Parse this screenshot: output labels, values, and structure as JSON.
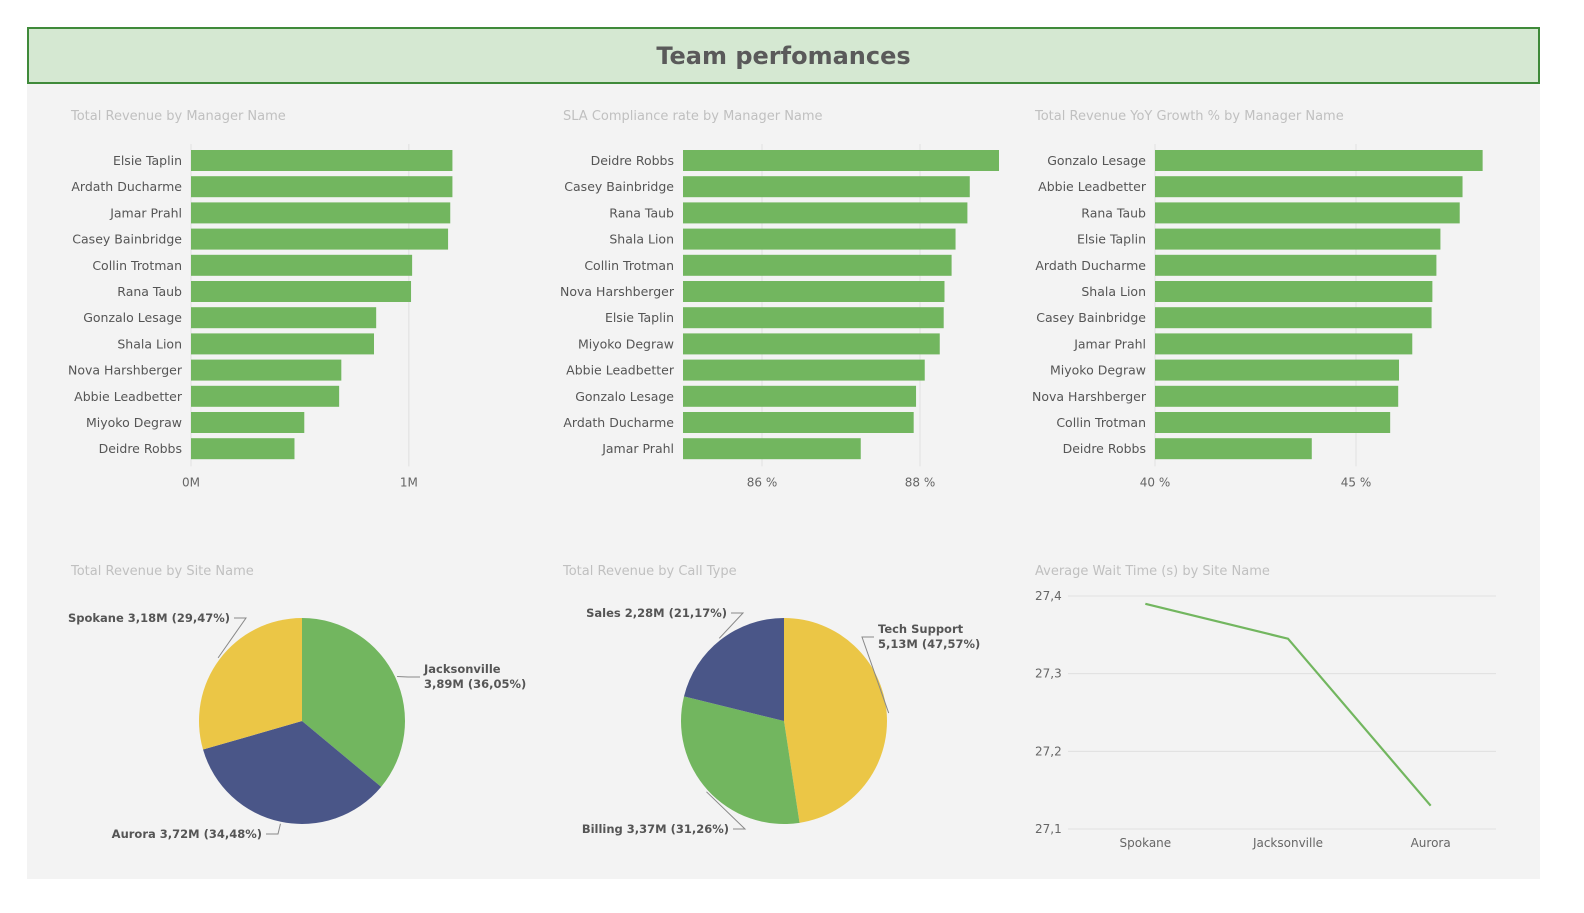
{
  "header": {
    "title": "Team perfomances"
  },
  "colors": {
    "green": "#72b65f",
    "yellow": "#ebc646",
    "navy": "#4a5688",
    "line": "#72b65f",
    "grid": "#e0e0e0"
  },
  "chart_data": [
    {
      "id": "rev_by_manager",
      "type": "bar",
      "orientation": "horizontal",
      "title": "Total Revenue by Manager Name",
      "categories": [
        "Elsie Taplin",
        "Ardath Ducharme",
        "Jamar Prahl",
        "Casey Bainbridge",
        "Collin Trotman",
        "Rana Taub",
        "Gonzalo Lesage",
        "Shala Lion",
        "Nova Harshberger",
        "Abbie Leadbetter",
        "Miyoko Degraw",
        "Deidre Robbs"
      ],
      "values": [
        1200000,
        1200000,
        1190000,
        1180000,
        1015000,
        1010000,
        850000,
        840000,
        690000,
        680000,
        520000,
        475000
      ],
      "xlim": [
        0,
        1400000
      ],
      "ticks": [
        0,
        1000000
      ],
      "tick_labels": [
        "0M",
        "1M"
      ]
    },
    {
      "id": "sla_by_manager",
      "type": "bar",
      "orientation": "horizontal",
      "title": "SLA Compliance rate by Manager Name",
      "categories": [
        "Deidre Robbs",
        "Casey Bainbridge",
        "Rana Taub",
        "Shala Lion",
        "Collin Trotman",
        "Nova Harshberger",
        "Elsie Taplin",
        "Miyoko Degraw",
        "Abbie Leadbetter",
        "Gonzalo Lesage",
        "Ardath Ducharme",
        "Jamar Prahl"
      ],
      "values": [
        89.0,
        88.63,
        88.6,
        88.45,
        88.4,
        88.31,
        88.3,
        88.25,
        88.06,
        87.95,
        87.92,
        87.25
      ],
      "xlim": [
        85.0,
        90.0
      ],
      "ticks": [
        86,
        88
      ],
      "tick_labels": [
        "86 %",
        "88 %"
      ]
    },
    {
      "id": "yoy_by_manager",
      "type": "bar",
      "orientation": "horizontal",
      "title": "Total Revenue YoY Growth % by Manager Name",
      "categories": [
        "Gonzalo Lesage",
        "Abbie Leadbetter",
        "Rana Taub",
        "Elsie Taplin",
        "Ardath Ducharme",
        "Shala Lion",
        "Casey Bainbridge",
        "Jamar Prahl",
        "Miyoko Degraw",
        "Nova Harshberger",
        "Collin Trotman",
        "Deidre Robbs"
      ],
      "values": [
        48.15,
        47.65,
        47.58,
        47.1,
        47.0,
        46.9,
        46.88,
        46.4,
        46.07,
        46.05,
        45.85,
        43.9
      ],
      "xlim": [
        40,
        50
      ],
      "ticks": [
        40,
        45
      ],
      "tick_labels": [
        "40 %",
        "45 %"
      ]
    },
    {
      "id": "rev_by_site",
      "type": "pie",
      "title": "Total Revenue by Site Name",
      "slices": [
        {
          "label": "Jacksonville",
          "value": 3.89,
          "percent": 36.05,
          "text_line1": "Jacksonville",
          "text_line2": "3,89M (36,05%)",
          "color": "#72b65f"
        },
        {
          "label": "Aurora",
          "value": 3.72,
          "percent": 34.48,
          "text_line1": "Aurora 3,72M (34,48%)",
          "text_line2": "",
          "color": "#4a5688"
        },
        {
          "label": "Spokane",
          "value": 3.18,
          "percent": 29.47,
          "text_line1": "Spokane 3,18M (29,47%)",
          "text_line2": "",
          "color": "#ebc646"
        }
      ]
    },
    {
      "id": "rev_by_call_type",
      "type": "pie",
      "title": "Total Revenue by Call Type",
      "slices": [
        {
          "label": "Tech Support",
          "value": 5.13,
          "percent": 47.57,
          "text_line1": "Tech Support",
          "text_line2": "5,13M (47,57%)",
          "color": "#ebc646"
        },
        {
          "label": "Billing",
          "value": 3.37,
          "percent": 31.26,
          "text_line1": "Billing 3,37M (31,26%)",
          "text_line2": "",
          "color": "#72b65f"
        },
        {
          "label": "Sales",
          "value": 2.28,
          "percent": 21.17,
          "text_line1": "Sales 2,28M (21,17%)",
          "text_line2": "",
          "color": "#4a5688"
        }
      ]
    },
    {
      "id": "wait_by_site",
      "type": "line",
      "title": "Average Wait Time (s) by Site Name",
      "categories": [
        "Spokane",
        "Jacksonville",
        "Aurora"
      ],
      "values": [
        27.39,
        27.345,
        27.13
      ],
      "ylim": [
        27.1,
        27.4
      ],
      "ticks": [
        27.1,
        27.2,
        27.3,
        27.4
      ],
      "tick_labels": [
        "27,1",
        "27,2",
        "27,3",
        "27,4"
      ]
    }
  ]
}
